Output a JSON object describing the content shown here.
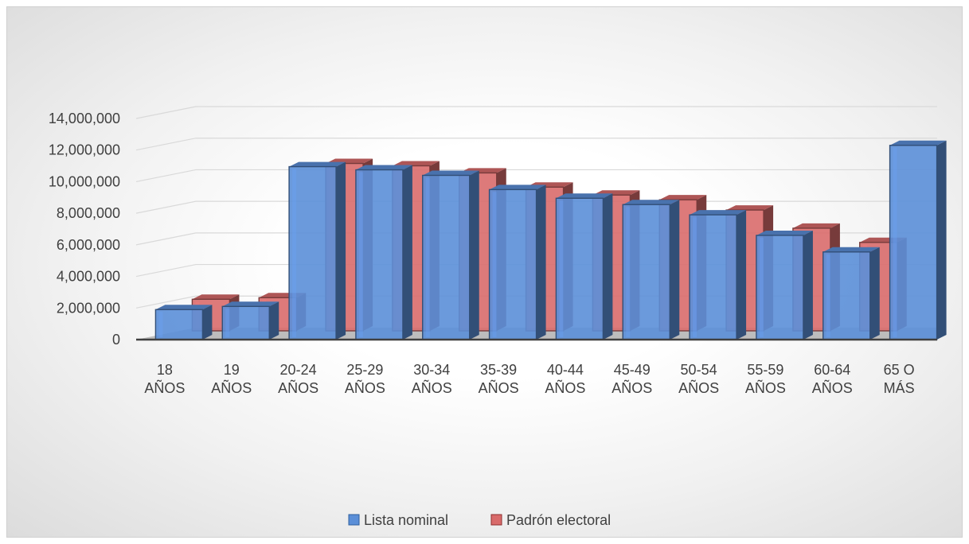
{
  "chart_data": {
    "type": "bar",
    "title": "",
    "xlabel": "",
    "ylabel": "",
    "ylim": [
      0,
      14000000
    ],
    "yticks": [
      0,
      2000000,
      4000000,
      6000000,
      8000000,
      10000000,
      12000000,
      14000000
    ],
    "ytick_labels": [
      "0",
      "2,000,000",
      "4,000,000",
      "6,000,000",
      "8,000,000",
      "10,000,000",
      "12,000,000",
      "14,000,000"
    ],
    "categories": [
      [
        "18",
        "AÑOS"
      ],
      [
        "19",
        "AÑOS"
      ],
      [
        "20-24",
        "AÑOS"
      ],
      [
        "25-29",
        "AÑOS"
      ],
      [
        "30-34",
        "AÑOS"
      ],
      [
        "35-39",
        "AÑOS"
      ],
      [
        "40-44",
        "AÑOS"
      ],
      [
        "45-49",
        "AÑOS"
      ],
      [
        "50-54",
        "AÑOS"
      ],
      [
        "55-59",
        "AÑOS"
      ],
      [
        "60-64",
        "AÑOS"
      ],
      [
        "65 O",
        "MÁS"
      ]
    ],
    "series": [
      {
        "name": "Lista nominal",
        "color": "#5b8fd8",
        "values": [
          1900000,
          2100000,
          10950000,
          10750000,
          10400000,
          9500000,
          8950000,
          8550000,
          7900000,
          6600000,
          5550000,
          12300000
        ]
      },
      {
        "name": "Padrón electoral",
        "color": "#d96b6b",
        "values": [
          2000000,
          2100000,
          10600000,
          10450000,
          10000000,
          9100000,
          8600000,
          8300000,
          7650000,
          6500000,
          5600000,
          12000000
        ]
      }
    ],
    "grid": true,
    "legend_position": "bottom",
    "style": "3d-clustered-column"
  }
}
